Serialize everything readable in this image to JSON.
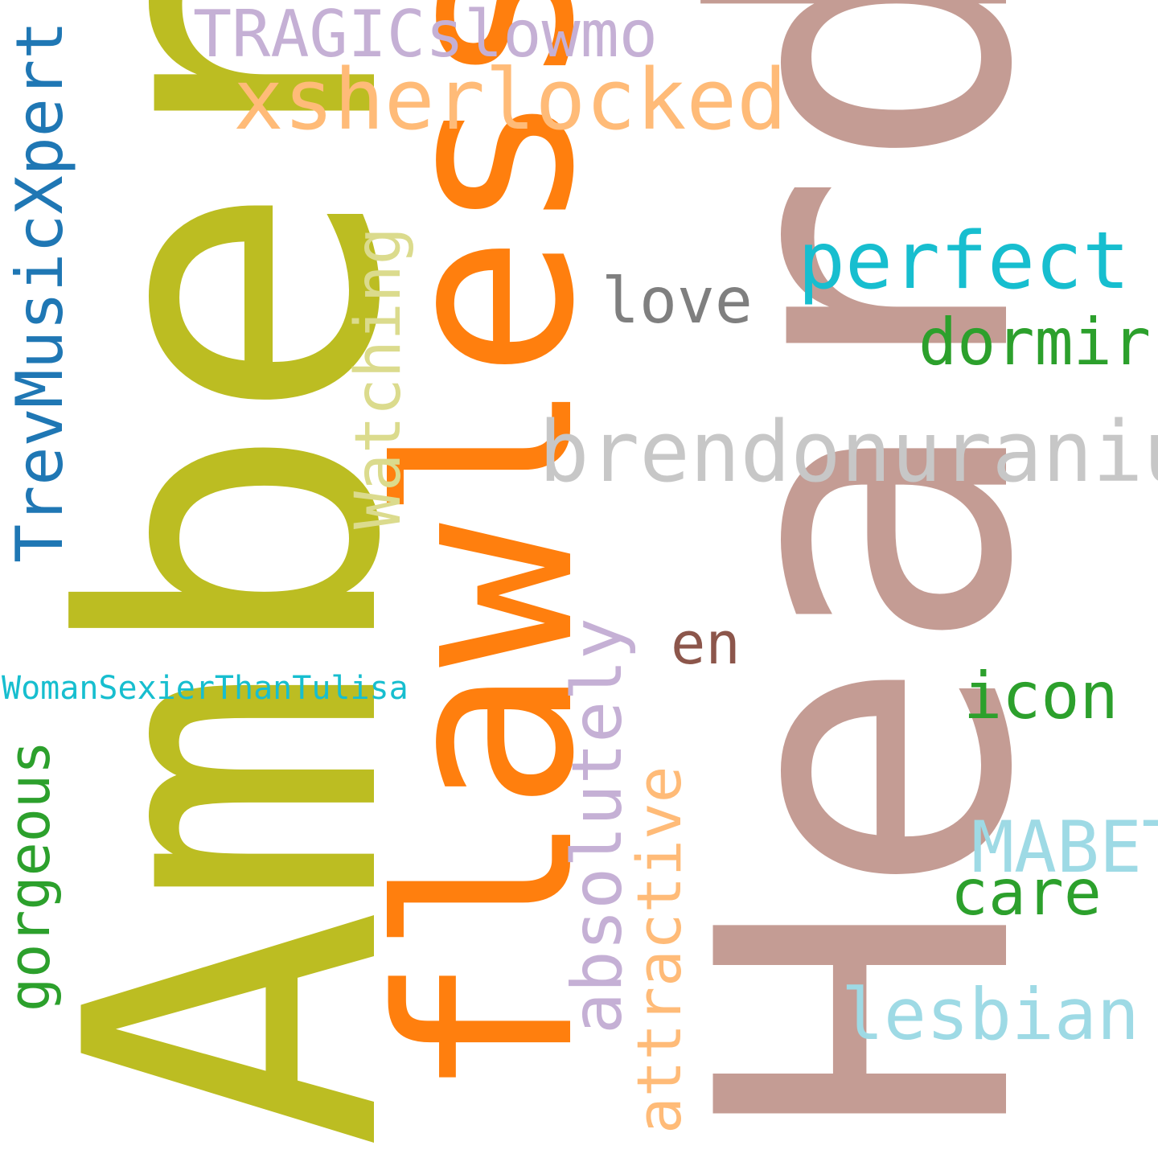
{
  "words": {
    "amber": {
      "text": "Amber",
      "color": "#bcbd22"
    },
    "heard": {
      "text": "Heard",
      "color": "#c49c94"
    },
    "flawless": {
      "text": "flawless",
      "color": "#ff7f0e"
    },
    "xsherlocked": {
      "text": "xsherlocked",
      "color": "#ffbb78"
    },
    "tragicslowmo": {
      "text": "TRAGICslowmo",
      "color": "#c5b0d5"
    },
    "trevmusicxpert": {
      "text": "TrevMusicXpert",
      "color": "#1f77b4"
    },
    "watching": {
      "text": "Watching",
      "color": "#dbdb8d"
    },
    "perfect": {
      "text": "perfect",
      "color": "#17becf"
    },
    "love": {
      "text": "love",
      "color": "#7f7f7f"
    },
    "dormir": {
      "text": "dormir",
      "color": "#2ca02c"
    },
    "brendonuranium": {
      "text": "brendonuranium",
      "color": "#c7c7c7"
    },
    "absolutely": {
      "text": "absolutely",
      "color": "#c5b0d5"
    },
    "en": {
      "text": "en",
      "color": "#8c564b"
    },
    "icon": {
      "text": "icon",
      "color": "#2ca02c"
    },
    "womansexierthantulisa": {
      "text": "WomanSexierThanTulisa",
      "color": "#17becf"
    },
    "gorgeous": {
      "text": "gorgeous",
      "color": "#2ca02c"
    },
    "attractive": {
      "text": "attractive",
      "color": "#ffbb78"
    },
    "mabet": {
      "text": "MABET",
      "color": "#9edae5"
    },
    "care": {
      "text": "care",
      "color": "#2ca02c"
    },
    "lesbian": {
      "text": "lesbian",
      "color": "#9edae5"
    }
  }
}
